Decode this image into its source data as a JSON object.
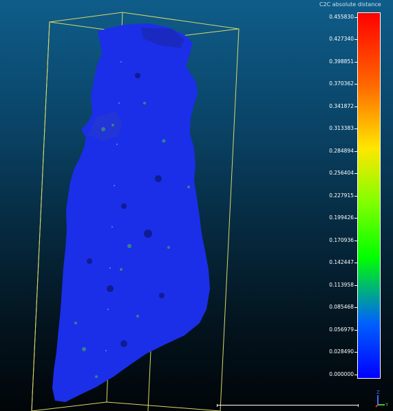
{
  "color_scale": {
    "title": "C2C absolute distance",
    "ticks": [
      "0.455830",
      "0.427340",
      "0.398851",
      "0.370362",
      "0.341872",
      "0.313383",
      "0.284894",
      "0.256404",
      "0.227915",
      "0.199426",
      "0.170936",
      "0.142447",
      "0.113958",
      "0.085468",
      "0.056979",
      "0.028490",
      "0.000000"
    ],
    "gradient_colors": [
      "#ff0000",
      "#ff6a00",
      "#ffe600",
      "#80ff00",
      "#00ff00",
      "#0060ff",
      "#0000ff"
    ]
  },
  "axis_labels": {
    "z": "Z",
    "y": "Y"
  },
  "colors": {
    "background_top": "#0f5d8a",
    "background_bottom": "#010508",
    "bounding_box": "#d9d96a",
    "point_cloud": "#1b2fe8"
  }
}
